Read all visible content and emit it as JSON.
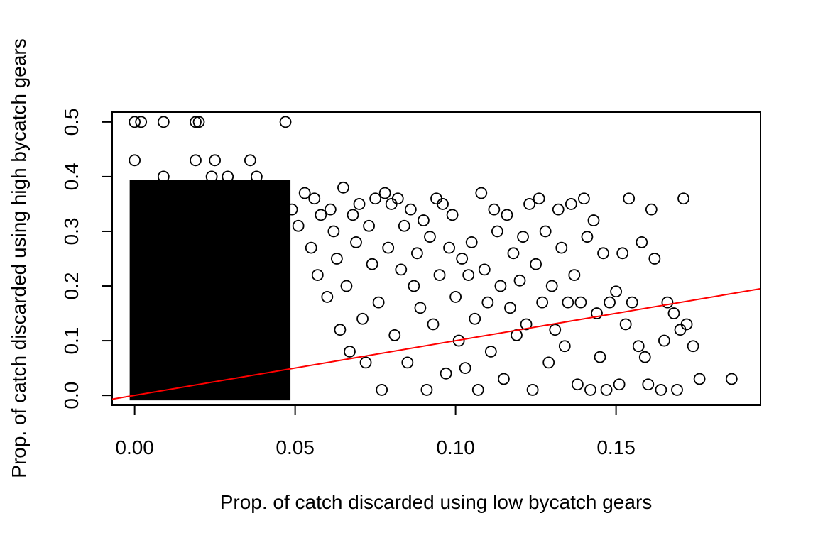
{
  "chart_data": {
    "type": "scatter",
    "title": "",
    "xlabel": "Prop. of catch discarded using low bycatch gears",
    "ylabel": "Prop. of catch discarded using high bycatch gears",
    "xlim": [
      -0.007,
      0.195
    ],
    "ylim": [
      -0.018,
      0.518
    ],
    "x_ticks": [
      0.0,
      0.05,
      0.1,
      0.15
    ],
    "x_tick_labels": [
      "0.00",
      "0.05",
      "0.10",
      "0.15"
    ],
    "y_ticks": [
      0.0,
      0.1,
      0.2,
      0.3,
      0.4,
      0.5
    ],
    "y_tick_labels": [
      "0.0",
      "0.1",
      "0.2",
      "0.3",
      "0.4",
      "0.5"
    ],
    "grid": false,
    "legend": "none",
    "point_style": "open-circle",
    "point_color": "#000000",
    "dense_region": {
      "x_range": [
        0.0,
        0.047
      ],
      "y_range": [
        0.0,
        0.385
      ],
      "note": "points fill region solidly"
    },
    "trend_line": {
      "color": "#ff0000",
      "intercept": 0.0,
      "slope": 1.0
    },
    "points": [
      {
        "x": 0.0,
        "y": 0.5
      },
      {
        "x": 0.002,
        "y": 0.5
      },
      {
        "x": 0.009,
        "y": 0.5
      },
      {
        "x": 0.019,
        "y": 0.5
      },
      {
        "x": 0.02,
        "y": 0.5
      },
      {
        "x": 0.047,
        "y": 0.5
      },
      {
        "x": 0.0,
        "y": 0.43
      },
      {
        "x": 0.019,
        "y": 0.43
      },
      {
        "x": 0.025,
        "y": 0.43
      },
      {
        "x": 0.036,
        "y": 0.43
      },
      {
        "x": 0.024,
        "y": 0.4
      },
      {
        "x": 0.038,
        "y": 0.4
      },
      {
        "x": 0.029,
        "y": 0.4
      },
      {
        "x": 0.009,
        "y": 0.4
      },
      {
        "x": 0.049,
        "y": 0.34
      },
      {
        "x": 0.051,
        "y": 0.31
      },
      {
        "x": 0.053,
        "y": 0.37
      },
      {
        "x": 0.055,
        "y": 0.27
      },
      {
        "x": 0.056,
        "y": 0.36
      },
      {
        "x": 0.057,
        "y": 0.22
      },
      {
        "x": 0.058,
        "y": 0.33
      },
      {
        "x": 0.06,
        "y": 0.18
      },
      {
        "x": 0.061,
        "y": 0.34
      },
      {
        "x": 0.062,
        "y": 0.3
      },
      {
        "x": 0.063,
        "y": 0.25
      },
      {
        "x": 0.064,
        "y": 0.12
      },
      {
        "x": 0.065,
        "y": 0.38
      },
      {
        "x": 0.066,
        "y": 0.2
      },
      {
        "x": 0.067,
        "y": 0.08
      },
      {
        "x": 0.068,
        "y": 0.33
      },
      {
        "x": 0.069,
        "y": 0.28
      },
      {
        "x": 0.07,
        "y": 0.35
      },
      {
        "x": 0.071,
        "y": 0.14
      },
      {
        "x": 0.072,
        "y": 0.06
      },
      {
        "x": 0.073,
        "y": 0.31
      },
      {
        "x": 0.074,
        "y": 0.24
      },
      {
        "x": 0.075,
        "y": 0.36
      },
      {
        "x": 0.076,
        "y": 0.17
      },
      {
        "x": 0.077,
        "y": 0.01
      },
      {
        "x": 0.078,
        "y": 0.37
      },
      {
        "x": 0.079,
        "y": 0.27
      },
      {
        "x": 0.08,
        "y": 0.35
      },
      {
        "x": 0.081,
        "y": 0.11
      },
      {
        "x": 0.082,
        "y": 0.36
      },
      {
        "x": 0.083,
        "y": 0.23
      },
      {
        "x": 0.084,
        "y": 0.31
      },
      {
        "x": 0.085,
        "y": 0.06
      },
      {
        "x": 0.086,
        "y": 0.34
      },
      {
        "x": 0.087,
        "y": 0.2
      },
      {
        "x": 0.088,
        "y": 0.26
      },
      {
        "x": 0.089,
        "y": 0.16
      },
      {
        "x": 0.09,
        "y": 0.32
      },
      {
        "x": 0.091,
        "y": 0.01
      },
      {
        "x": 0.092,
        "y": 0.29
      },
      {
        "x": 0.093,
        "y": 0.13
      },
      {
        "x": 0.094,
        "y": 0.36
      },
      {
        "x": 0.095,
        "y": 0.22
      },
      {
        "x": 0.096,
        "y": 0.35
      },
      {
        "x": 0.097,
        "y": 0.04
      },
      {
        "x": 0.098,
        "y": 0.27
      },
      {
        "x": 0.099,
        "y": 0.33
      },
      {
        "x": 0.1,
        "y": 0.18
      },
      {
        "x": 0.101,
        "y": 0.1
      },
      {
        "x": 0.102,
        "y": 0.25
      },
      {
        "x": 0.103,
        "y": 0.05
      },
      {
        "x": 0.104,
        "y": 0.22
      },
      {
        "x": 0.105,
        "y": 0.28
      },
      {
        "x": 0.106,
        "y": 0.14
      },
      {
        "x": 0.107,
        "y": 0.01
      },
      {
        "x": 0.108,
        "y": 0.37
      },
      {
        "x": 0.109,
        "y": 0.23
      },
      {
        "x": 0.11,
        "y": 0.17
      },
      {
        "x": 0.111,
        "y": 0.08
      },
      {
        "x": 0.112,
        "y": 0.34
      },
      {
        "x": 0.113,
        "y": 0.3
      },
      {
        "x": 0.114,
        "y": 0.2
      },
      {
        "x": 0.115,
        "y": 0.03
      },
      {
        "x": 0.116,
        "y": 0.33
      },
      {
        "x": 0.117,
        "y": 0.16
      },
      {
        "x": 0.118,
        "y": 0.26
      },
      {
        "x": 0.119,
        "y": 0.11
      },
      {
        "x": 0.12,
        "y": 0.21
      },
      {
        "x": 0.121,
        "y": 0.29
      },
      {
        "x": 0.122,
        "y": 0.13
      },
      {
        "x": 0.123,
        "y": 0.35
      },
      {
        "x": 0.124,
        "y": 0.01
      },
      {
        "x": 0.125,
        "y": 0.24
      },
      {
        "x": 0.126,
        "y": 0.36
      },
      {
        "x": 0.127,
        "y": 0.17
      },
      {
        "x": 0.128,
        "y": 0.3
      },
      {
        "x": 0.129,
        "y": 0.06
      },
      {
        "x": 0.13,
        "y": 0.2
      },
      {
        "x": 0.131,
        "y": 0.12
      },
      {
        "x": 0.132,
        "y": 0.34
      },
      {
        "x": 0.133,
        "y": 0.27
      },
      {
        "x": 0.134,
        "y": 0.09
      },
      {
        "x": 0.135,
        "y": 0.17
      },
      {
        "x": 0.136,
        "y": 0.35
      },
      {
        "x": 0.137,
        "y": 0.22
      },
      {
        "x": 0.138,
        "y": 0.02
      },
      {
        "x": 0.139,
        "y": 0.17
      },
      {
        "x": 0.14,
        "y": 0.36
      },
      {
        "x": 0.141,
        "y": 0.29
      },
      {
        "x": 0.142,
        "y": 0.01
      },
      {
        "x": 0.143,
        "y": 0.32
      },
      {
        "x": 0.144,
        "y": 0.15
      },
      {
        "x": 0.145,
        "y": 0.07
      },
      {
        "x": 0.146,
        "y": 0.26
      },
      {
        "x": 0.147,
        "y": 0.01
      },
      {
        "x": 0.148,
        "y": 0.17
      },
      {
        "x": 0.15,
        "y": 0.19
      },
      {
        "x": 0.151,
        "y": 0.02
      },
      {
        "x": 0.152,
        "y": 0.26
      },
      {
        "x": 0.153,
        "y": 0.13
      },
      {
        "x": 0.154,
        "y": 0.36
      },
      {
        "x": 0.155,
        "y": 0.17
      },
      {
        "x": 0.157,
        "y": 0.09
      },
      {
        "x": 0.158,
        "y": 0.28
      },
      {
        "x": 0.159,
        "y": 0.07
      },
      {
        "x": 0.16,
        "y": 0.02
      },
      {
        "x": 0.161,
        "y": 0.34
      },
      {
        "x": 0.162,
        "y": 0.25
      },
      {
        "x": 0.164,
        "y": 0.01
      },
      {
        "x": 0.165,
        "y": 0.1
      },
      {
        "x": 0.166,
        "y": 0.17
      },
      {
        "x": 0.168,
        "y": 0.15
      },
      {
        "x": 0.169,
        "y": 0.01
      },
      {
        "x": 0.17,
        "y": 0.12
      },
      {
        "x": 0.171,
        "y": 0.36
      },
      {
        "x": 0.172,
        "y": 0.13
      },
      {
        "x": 0.174,
        "y": 0.09
      },
      {
        "x": 0.176,
        "y": 0.03
      },
      {
        "x": 0.186,
        "y": 0.03
      }
    ]
  }
}
